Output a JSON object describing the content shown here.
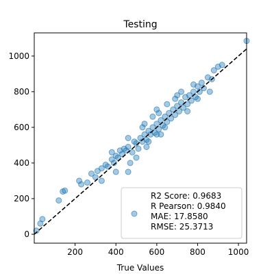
{
  "chart_data": {
    "type": "scatter",
    "title": "Testing",
    "xlabel": "True Values",
    "ylabel": "",
    "xlim": [
      0,
      1040
    ],
    "ylim": [
      -50,
      1130
    ],
    "x_ticks": [
      200,
      400,
      600,
      800,
      1000
    ],
    "y_ticks": [
      0,
      200,
      400,
      600,
      800,
      1000
    ],
    "reference_line": {
      "style": "dashed",
      "color": "#000000",
      "x": [
        0,
        1040
      ],
      "y": [
        0,
        1040
      ]
    },
    "grid": false,
    "legend": {
      "placement": "bottom-right",
      "entries": [
        "R2 Score: 0.9683",
        "R Pearson: 0.9840",
        "MAE: 17.8580",
        "RMSE: 25.3713"
      ]
    },
    "series": [
      {
        "color": "#1f77b4",
        "points": [
          [
            10,
            20
          ],
          [
            30,
            60
          ],
          [
            40,
            85
          ],
          [
            120,
            190
          ],
          [
            140,
            240
          ],
          [
            150,
            245
          ],
          [
            220,
            300
          ],
          [
            230,
            280
          ],
          [
            260,
            290
          ],
          [
            280,
            340
          ],
          [
            300,
            320
          ],
          [
            310,
            355
          ],
          [
            330,
            370
          ],
          [
            350,
            390
          ],
          [
            360,
            380
          ],
          [
            380,
            420
          ],
          [
            390,
            400
          ],
          [
            400,
            440
          ],
          [
            410,
            430
          ],
          [
            420,
            470
          ],
          [
            430,
            450
          ],
          [
            450,
            470
          ],
          [
            460,
            490
          ],
          [
            460,
            350
          ],
          [
            480,
            460
          ],
          [
            490,
            520
          ],
          [
            500,
            510
          ],
          [
            510,
            480
          ],
          [
            520,
            540
          ],
          [
            530,
            520
          ],
          [
            540,
            560
          ],
          [
            550,
            530
          ],
          [
            560,
            580
          ],
          [
            570,
            560
          ],
          [
            580,
            600
          ],
          [
            590,
            570
          ],
          [
            600,
            620
          ],
          [
            610,
            590
          ],
          [
            620,
            640
          ],
          [
            630,
            610
          ],
          [
            640,
            660
          ],
          [
            650,
            630
          ],
          [
            660,
            680
          ],
          [
            670,
            650
          ],
          [
            680,
            700
          ],
          [
            690,
            670
          ],
          [
            700,
            720
          ],
          [
            710,
            690
          ],
          [
            720,
            740
          ],
          [
            730,
            710
          ],
          [
            740,
            770
          ],
          [
            750,
            730
          ],
          [
            760,
            780
          ],
          [
            770,
            750
          ],
          [
            780,
            800
          ],
          [
            790,
            770
          ],
          [
            800,
            830
          ],
          [
            810,
            800
          ],
          [
            820,
            850
          ],
          [
            830,
            820
          ],
          [
            850,
            880
          ],
          [
            870,
            870
          ],
          [
            900,
            940
          ],
          [
            920,
            950
          ],
          [
            1040,
            1085
          ],
          [
            600,
            700
          ],
          [
            650,
            730
          ],
          [
            700,
            780
          ],
          [
            400,
            350
          ],
          [
            500,
            430
          ],
          [
            550,
            490
          ],
          [
            620,
            560
          ],
          [
            750,
            690
          ],
          [
            460,
            540
          ],
          [
            800,
            760
          ],
          [
            380,
            460
          ],
          [
            540,
            620
          ],
          [
            580,
            660
          ],
          [
            720,
            800
          ],
          [
            860,
            800
          ],
          [
            330,
            300
          ],
          [
            470,
            400
          ],
          [
            690,
            760
          ],
          [
            610,
            680
          ],
          [
            530,
            600
          ],
          [
            780,
            840
          ],
          [
            880,
            920
          ],
          [
            640,
            600
          ],
          [
            440,
            480
          ],
          [
            560,
            520
          ],
          [
            600,
            560
          ]
        ]
      }
    ]
  }
}
